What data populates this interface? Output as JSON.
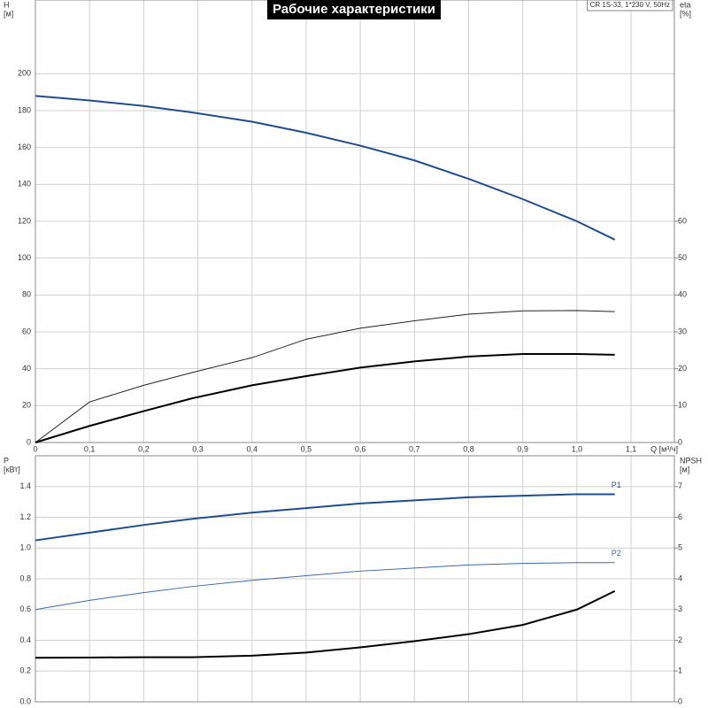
{
  "chart_data": [
    {
      "type": "line",
      "title": "Рабочие характеристики",
      "annotation": "CR 1S-33, 1*230 V, 50Hz",
      "ylabel": "H",
      "yunit": "[м]",
      "y2label": "eta",
      "y2unit": "[%]",
      "xlabel": "Q [м³/ч]",
      "x": [
        0,
        0.1,
        0.2,
        0.29,
        0.4,
        0.5,
        0.6,
        0.7,
        0.8,
        0.9,
        1.0,
        1.07
      ],
      "xlim": [
        0,
        1.18
      ],
      "xticks": [
        0,
        {
          "value": 0.1,
          "label": "0,1"
        },
        {
          "value": 0.2,
          "label": "0,2"
        },
        {
          "value": 0.3,
          "label": "0,3"
        },
        {
          "value": 0.4,
          "label": "0,4"
        },
        {
          "value": 0.5,
          "label": "0,5"
        },
        {
          "value": 0.6,
          "label": "0,6"
        },
        {
          "value": 0.7,
          "label": "0,7"
        },
        {
          "value": 0.8,
          "label": "0,8"
        },
        {
          "value": 0.9,
          "label": "0,9"
        },
        {
          "value": 1.0,
          "label": "1,0"
        },
        {
          "value": 1.1,
          "label": "1,1"
        }
      ],
      "ylim": [
        0,
        240
      ],
      "yticks": [
        0,
        20,
        40,
        60,
        80,
        100,
        120,
        140,
        160,
        180,
        200
      ],
      "y2lim": [
        0,
        120
      ],
      "y2ticks": [
        0,
        10,
        20,
        30,
        40,
        50,
        60
      ],
      "grid": true,
      "series": [
        {
          "color": "#1f4e8c",
          "width": 2,
          "values": [
            188,
            185.5,
            182.5,
            179,
            174,
            168,
            161,
            153,
            143,
            132,
            120,
            110
          ]
        },
        {
          "color": "#222222",
          "width": 1,
          "axis": "y2",
          "values": [
            0,
            11,
            15.5,
            19,
            23,
            28,
            31,
            33,
            34.8,
            35.7,
            35.8,
            35.5
          ]
        },
        {
          "color": "#000000",
          "width": 2,
          "axis": "y2",
          "values": [
            0,
            4.5,
            8.5,
            12,
            15.5,
            18,
            20.3,
            22,
            23.3,
            24,
            24,
            23.8
          ]
        }
      ]
    },
    {
      "type": "line",
      "ylabel": "P",
      "yunit": "[кВт]",
      "y2label": "NPSH",
      "y2unit": "[м]",
      "x": [
        0,
        0.1,
        0.2,
        0.29,
        0.4,
        0.5,
        0.6,
        0.7,
        0.8,
        0.9,
        1.0,
        1.07
      ],
      "xlim": [
        0,
        1.18
      ],
      "ylim": [
        0,
        1.6
      ],
      "yticks": [
        {
          "value": 0,
          "label": "0.0"
        },
        0.2,
        0.4,
        0.6,
        0.8,
        {
          "value": 1,
          "label": "1.0"
        },
        1.2,
        1.4
      ],
      "y2lim": [
        0,
        8
      ],
      "y2ticks": [
        0,
        1,
        2,
        3,
        4,
        5,
        6,
        7
      ],
      "grid": true,
      "series": [
        {
          "name": "P1",
          "color": "#1f4e8c",
          "width": 2,
          "values": [
            1.05,
            1.1,
            1.15,
            1.19,
            1.23,
            1.26,
            1.29,
            1.31,
            1.33,
            1.34,
            1.35,
            1.35
          ]
        },
        {
          "name": "P2",
          "color": "#3a6aa8",
          "width": 1,
          "values": [
            0.6,
            0.66,
            0.71,
            0.75,
            0.79,
            0.82,
            0.85,
            0.87,
            0.89,
            0.9,
            0.905,
            0.905
          ]
        },
        {
          "color": "#000000",
          "width": 2,
          "axis": "y2",
          "values": [
            1.43,
            1.44,
            1.45,
            1.45,
            1.5,
            1.6,
            1.77,
            1.97,
            2.2,
            2.5,
            3.0,
            3.6
          ]
        }
      ]
    }
  ]
}
